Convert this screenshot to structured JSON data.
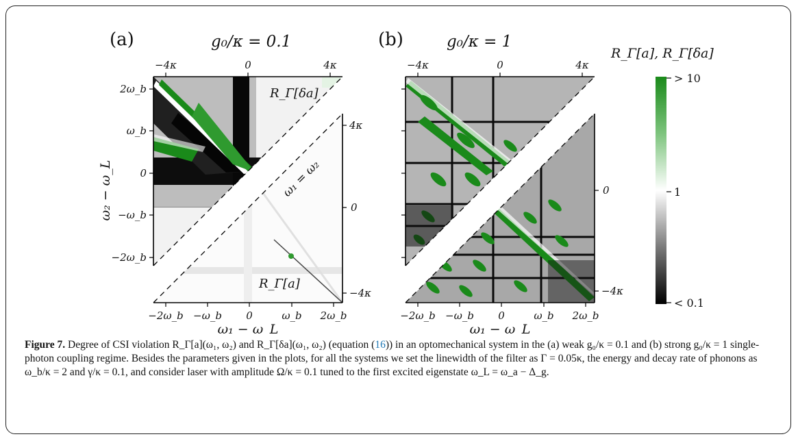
{
  "figure": {
    "panel_a": {
      "label": "(a)",
      "title": "g₀/κ = 0.1",
      "top_ticks": [
        "−4κ",
        "0",
        "4κ"
      ],
      "left_ticks": [
        "2ω_b",
        "ω_b",
        "0",
        "−ω_b",
        "−2ω_b"
      ],
      "bottom_ticks": [
        "−2ω_b",
        "−ω_b",
        "0",
        "ω_b",
        "2ω_b"
      ],
      "right_ticks": [
        "4κ",
        "0",
        "−4κ"
      ],
      "upper_label": "R_Γ[δa]",
      "lower_label": "R_Γ[a]",
      "diag_label": "ω₁ = ω₂"
    },
    "panel_b": {
      "label": "(b)",
      "title": "g₀/κ = 1",
      "top_ticks": [
        "−4κ",
        "0",
        "4κ"
      ],
      "bottom_ticks": [
        "−2ω_b",
        "−ω_b",
        "0",
        "ω_b",
        "2ω_b"
      ],
      "right_ticks": [
        "0",
        "−4κ"
      ]
    },
    "xlabel": "ω₁ − ω_L",
    "ylabel": "ω₂ − ω_L",
    "colorbar": {
      "title": "R_Γ[a], R_Γ[δa]",
      "ticks": [
        "> 10",
        "1",
        "< 0.1"
      ],
      "colors": [
        "#1a8a1a",
        "#ffffff",
        "#000000"
      ]
    }
  },
  "caption": {
    "label": "Figure 7.",
    "text_1": "Degree of CSI violation R_Γ[a](ω₁, ω₂) and R_Γ[δa](ω₁, ω₂) (equation (",
    "eq_ref": "16",
    "text_2": ")) in an optomechanical system in the (a) weak g₀/κ = 0.1 and (b) strong g₀/κ = 1 single-photon coupling regime. Besides the parameters given in the plots, for all the systems we set the linewidth of the filter as Γ = 0.05κ, the energy and decay rate of phonons as ω_b/κ = 2 and γ/κ = 0.1, and consider laser with amplitude Ω/κ = 0.1 tuned to the first excited eigenstate ω_L = ω_a − Δ_g."
  }
}
